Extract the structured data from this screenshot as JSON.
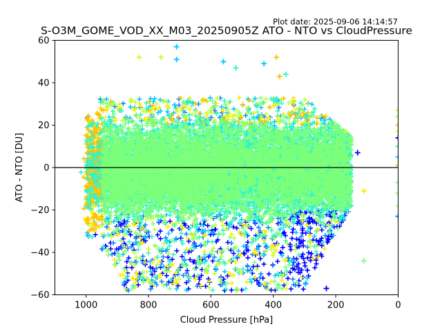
{
  "chart_data": {
    "type": "scatter",
    "title": "S-O3M_GOME_VOD_XX_M03_20250905Z ATO - NTO vs CloudPressure",
    "subtitle": "Plot date: 2025-09-06 14:14:57",
    "xlabel": "Cloud Pressure [hPa]",
    "ylabel": "ATO - NTO [DU]",
    "xlim": [
      1100,
      0
    ],
    "ylim": [
      -60,
      60
    ],
    "x_inverted": true,
    "grid": false,
    "marker": "+",
    "xticks": [
      1000,
      800,
      600,
      400,
      200,
      0
    ],
    "xtick_labels": [
      "1000",
      "800",
      "600",
      "400",
      "200",
      "0"
    ],
    "yticks": [
      -60,
      -40,
      -20,
      0,
      20,
      40,
      60
    ],
    "ytick_labels": [
      "−60",
      "−40",
      "−20",
      "0",
      "20",
      "40",
      "60"
    ],
    "reference_line_y": 0,
    "colormap": [
      "#0000ff",
      "#0a84ff",
      "#00c8ff",
      "#33f5c4",
      "#7cff79",
      "#c4ff33",
      "#ffea00",
      "#ffbf00"
    ],
    "cloud": {
      "x_range": [
        1000,
        150
      ],
      "y_core_range": [
        -30,
        30
      ],
      "description_points": "dense cloud of points"
    },
    "outliers": [
      {
        "x": 710,
        "y": 57,
        "color": "#00c8ff"
      },
      {
        "x": 830,
        "y": 52,
        "color": "#c4ff33"
      },
      {
        "x": 760,
        "y": 52,
        "color": "#c4ff33"
      },
      {
        "x": 710,
        "y": 51,
        "color": "#00c8ff"
      },
      {
        "x": 560,
        "y": 50,
        "color": "#00c8ff"
      },
      {
        "x": 520,
        "y": 47,
        "color": "#33f5c4"
      },
      {
        "x": 390,
        "y": 52,
        "color": "#ffbf00"
      },
      {
        "x": 430,
        "y": 49,
        "color": "#00c8ff"
      },
      {
        "x": 360,
        "y": 44,
        "color": "#33f5c4"
      },
      {
        "x": 380,
        "y": 43,
        "color": "#ffbf00"
      },
      {
        "x": 130,
        "y": 7,
        "color": "#0000ff"
      },
      {
        "x": 110,
        "y": -11,
        "color": "#ffea00"
      },
      {
        "x": 110,
        "y": -44,
        "color": "#7cff79"
      },
      {
        "x": 230,
        "y": -57,
        "color": "#0000ff"
      },
      {
        "x": 170,
        "y": 17,
        "color": "#c4ff33"
      }
    ],
    "edge_points_at_x0": [
      {
        "y": 27,
        "color": "#c4ff33"
      },
      {
        "y": 24,
        "color": "#c4ff33"
      },
      {
        "y": 20,
        "color": "#ffbf00"
      },
      {
        "y": 17,
        "color": "#ffea00"
      },
      {
        "y": 14,
        "color": "#0000ff"
      },
      {
        "y": 10,
        "color": "#33f5c4"
      },
      {
        "y": 5,
        "color": "#00c8ff"
      },
      {
        "y": 1,
        "color": "#ffbf00"
      },
      {
        "y": -7,
        "color": "#7cff79"
      },
      {
        "y": -12,
        "color": "#7cff79"
      },
      {
        "y": -18,
        "color": "#c4ff33"
      },
      {
        "y": -23,
        "color": "#0a84ff"
      }
    ]
  }
}
